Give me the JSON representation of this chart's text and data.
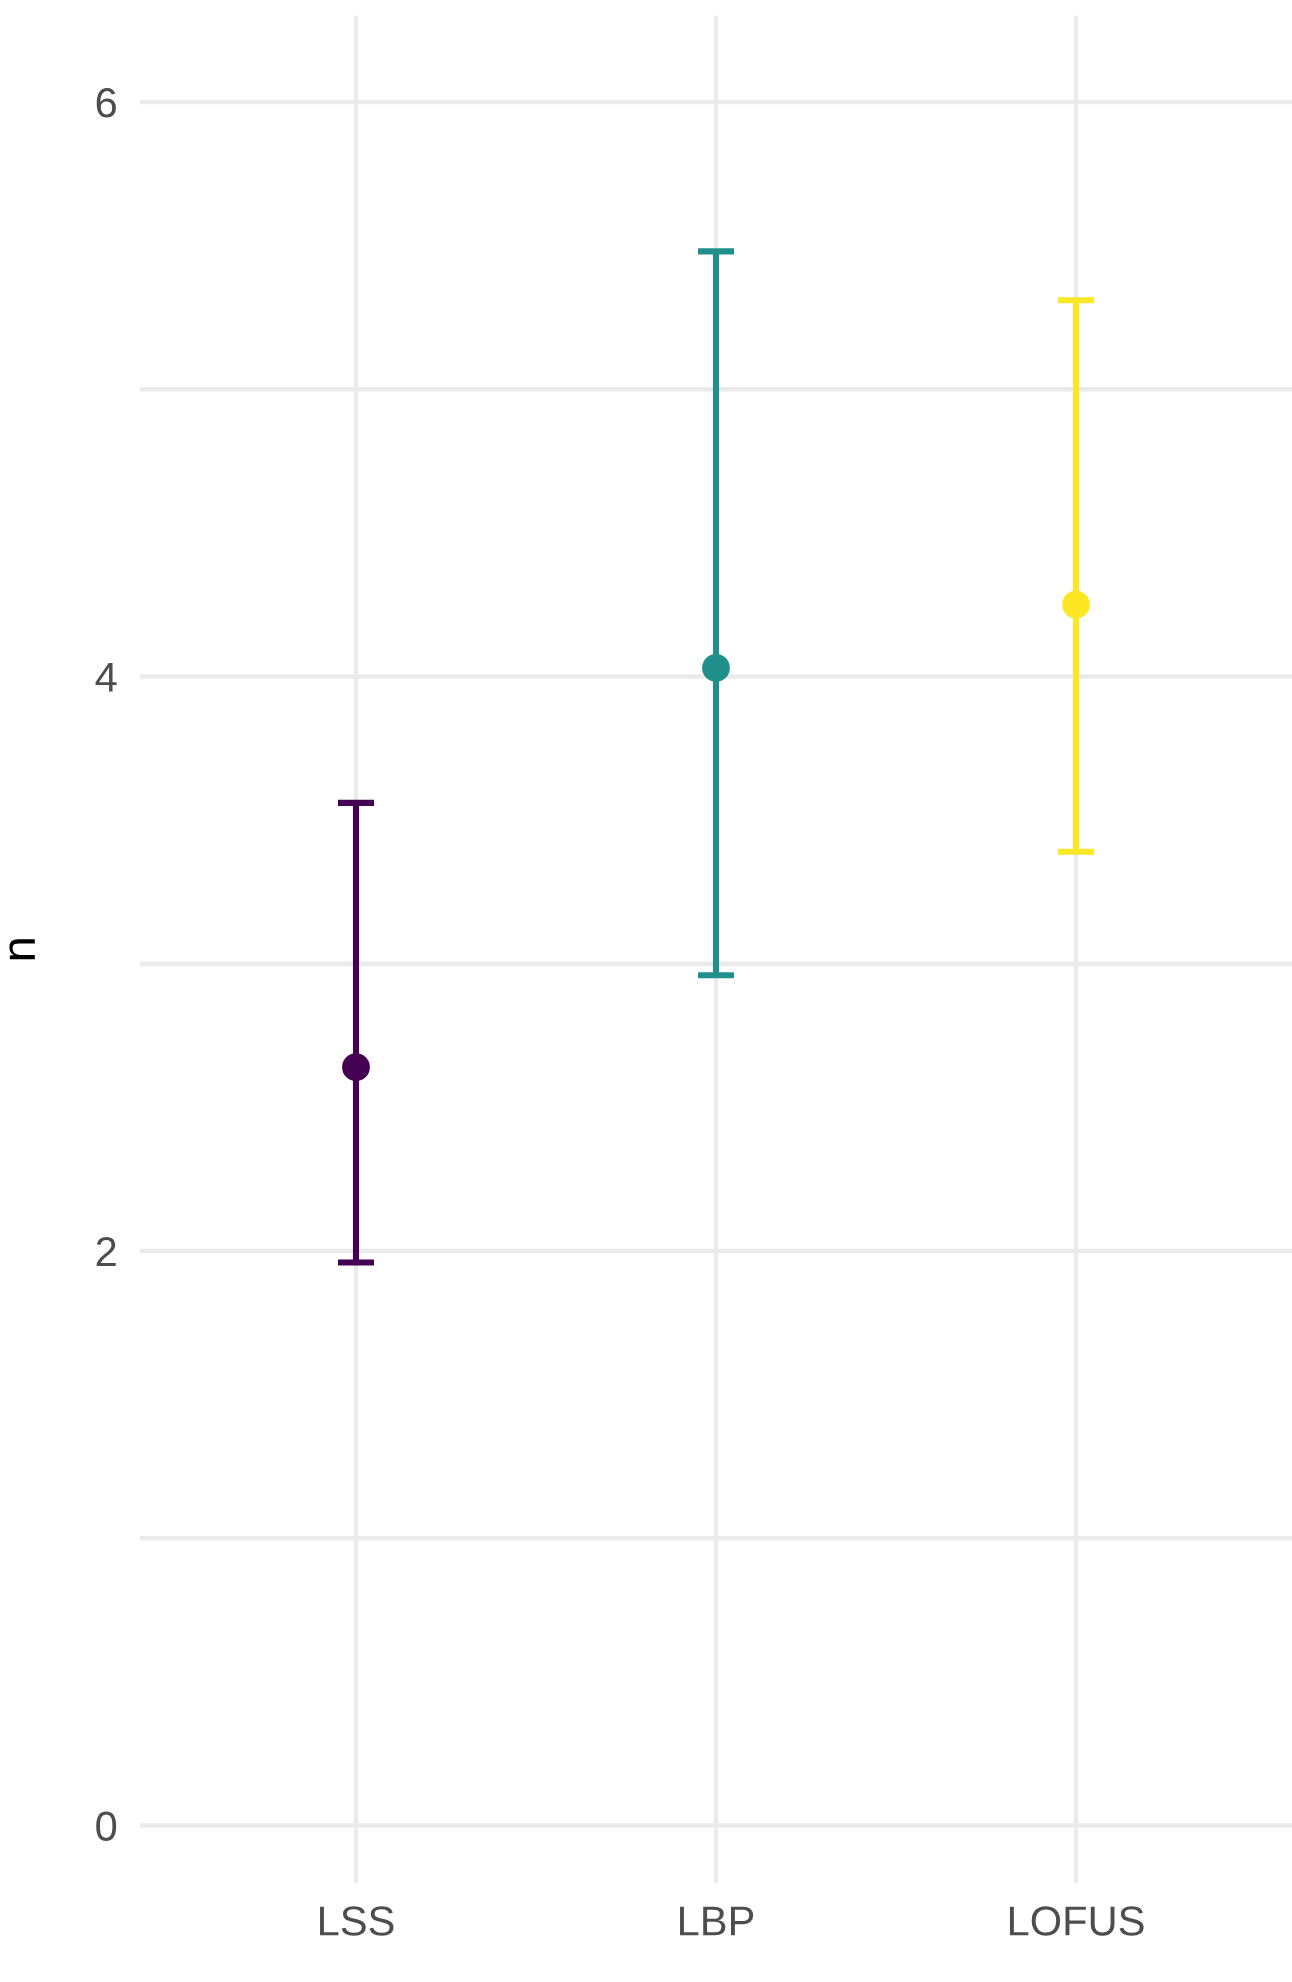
{
  "chart_data": {
    "type": "scatter",
    "ylabel": "n",
    "categories": [
      "LSS",
      "LBP",
      "LOFUS"
    ],
    "values": [
      2.64,
      4.03,
      4.25
    ],
    "errors": [
      [
        1.96,
        3.56
      ],
      [
        2.96,
        5.48
      ],
      [
        3.39,
        5.31
      ]
    ],
    "colors": [
      "#440154",
      "#21908c",
      "#fde725"
    ],
    "marker": "circle",
    "ylim": [
      -0.2,
      6.3
    ],
    "yticks": [
      0,
      {
        "value": 1,
        "label": null
      },
      2,
      {
        "value": 3,
        "label": null
      },
      4,
      {
        "value": 5,
        "label": null
      },
      6
    ],
    "grid": true
  }
}
